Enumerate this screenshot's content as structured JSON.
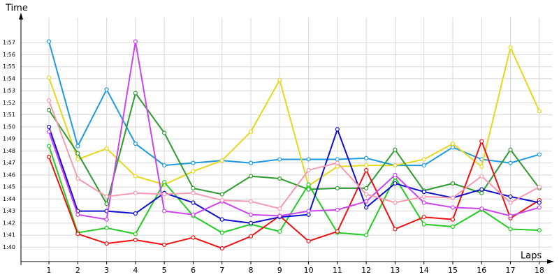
{
  "chart_data": {
    "type": "line",
    "y_label": "Time",
    "x_label": "Laps",
    "x": [
      1,
      2,
      3,
      4,
      5,
      6,
      7,
      8,
      9,
      10,
      11,
      12,
      13,
      14,
      15,
      16,
      17,
      18
    ],
    "xlim": [
      0.03,
      18.44
    ],
    "xticks": [
      1,
      2,
      3,
      4,
      5,
      6,
      7,
      8,
      9,
      10,
      11,
      12,
      13,
      14,
      15,
      16,
      17,
      18
    ],
    "ylim": [
      98.8,
      119.1
    ],
    "yticks": [
      {
        "value": 100,
        "label": "1:40"
      },
      {
        "value": 101,
        "label": "1:41"
      },
      {
        "value": 102,
        "label": "1:42"
      },
      {
        "value": 103,
        "label": "1:43"
      },
      {
        "value": 104,
        "label": "1:44"
      },
      {
        "value": 105,
        "label": "1:45"
      },
      {
        "value": 106,
        "label": "1:46"
      },
      {
        "value": 107,
        "label": "1:47"
      },
      {
        "value": 108,
        "label": "1:48"
      },
      {
        "value": 109,
        "label": "1:49"
      },
      {
        "value": 110,
        "label": "1:50"
      },
      {
        "value": 111,
        "label": "1:51"
      },
      {
        "value": 112,
        "label": "1:52"
      },
      {
        "value": 113,
        "label": "1:53"
      },
      {
        "value": 114,
        "label": "1:54"
      },
      {
        "value": 115,
        "label": "1:55"
      },
      {
        "value": 116,
        "label": "1:56"
      },
      {
        "value": 117,
        "label": "1:57"
      }
    ],
    "grid": true,
    "series": [
      {
        "color": "#1e9be0",
        "values": [
          117.1,
          108.4,
          113.1,
          108.6,
          106.8,
          107.0,
          107.2,
          107.0,
          107.3,
          107.3,
          107.3,
          107.4,
          106.8,
          106.8,
          108.3,
          107.3,
          107.0,
          107.7
        ]
      },
      {
        "color": "#e6d81c",
        "values": [
          114.1,
          107.3,
          108.2,
          105.9,
          105.2,
          106.3,
          107.2,
          109.6,
          113.9,
          105.1,
          106.7,
          106.8,
          106.8,
          107.3,
          108.6,
          106.7,
          116.6,
          111.3
        ]
      },
      {
        "color": "#2f9a2f",
        "values": [
          111.4,
          107.8,
          103.6,
          112.8,
          109.5,
          104.9,
          104.4,
          105.9,
          105.7,
          104.8,
          104.9,
          104.9,
          108.1,
          104.7,
          105.3,
          104.5,
          108.1,
          104.9
        ]
      },
      {
        "color": "#22cc22",
        "values": [
          108.4,
          101.2,
          101.6,
          101.1,
          105.4,
          102.6,
          101.2,
          101.9,
          101.3,
          105.2,
          101.2,
          101.0,
          105.8,
          101.9,
          101.7,
          103.1,
          101.5,
          101.4
        ]
      },
      {
        "color": "#ee1111",
        "values": [
          107.5,
          101.1,
          100.3,
          100.6,
          100.2,
          100.8,
          99.9,
          100.9,
          102.6,
          100.5,
          101.3,
          106.4,
          101.5,
          102.5,
          102.3,
          108.8,
          102.4,
          103.9
        ]
      },
      {
        "color": "#1010cc",
        "values": [
          110.0,
          103.0,
          103.0,
          102.8,
          104.5,
          103.7,
          102.3,
          102.0,
          102.5,
          102.7,
          109.8,
          103.3,
          105.3,
          104.6,
          104.1,
          104.8,
          104.2,
          103.7
        ]
      },
      {
        "color": "#cc44ee",
        "values": [
          109.6,
          102.7,
          102.3,
          117.1,
          103.0,
          102.7,
          103.8,
          102.7,
          102.6,
          103.0,
          103.1,
          103.8,
          106.0,
          103.7,
          103.3,
          103.2,
          102.6,
          103.3
        ]
      },
      {
        "color": "#f59ab0",
        "values": [
          112.2,
          105.7,
          104.2,
          104.5,
          104.4,
          104.5,
          103.9,
          103.8,
          103.2,
          106.4,
          107.0,
          104.4,
          103.7,
          104.2,
          104.1,
          105.9,
          103.7,
          105.0
        ]
      }
    ]
  }
}
